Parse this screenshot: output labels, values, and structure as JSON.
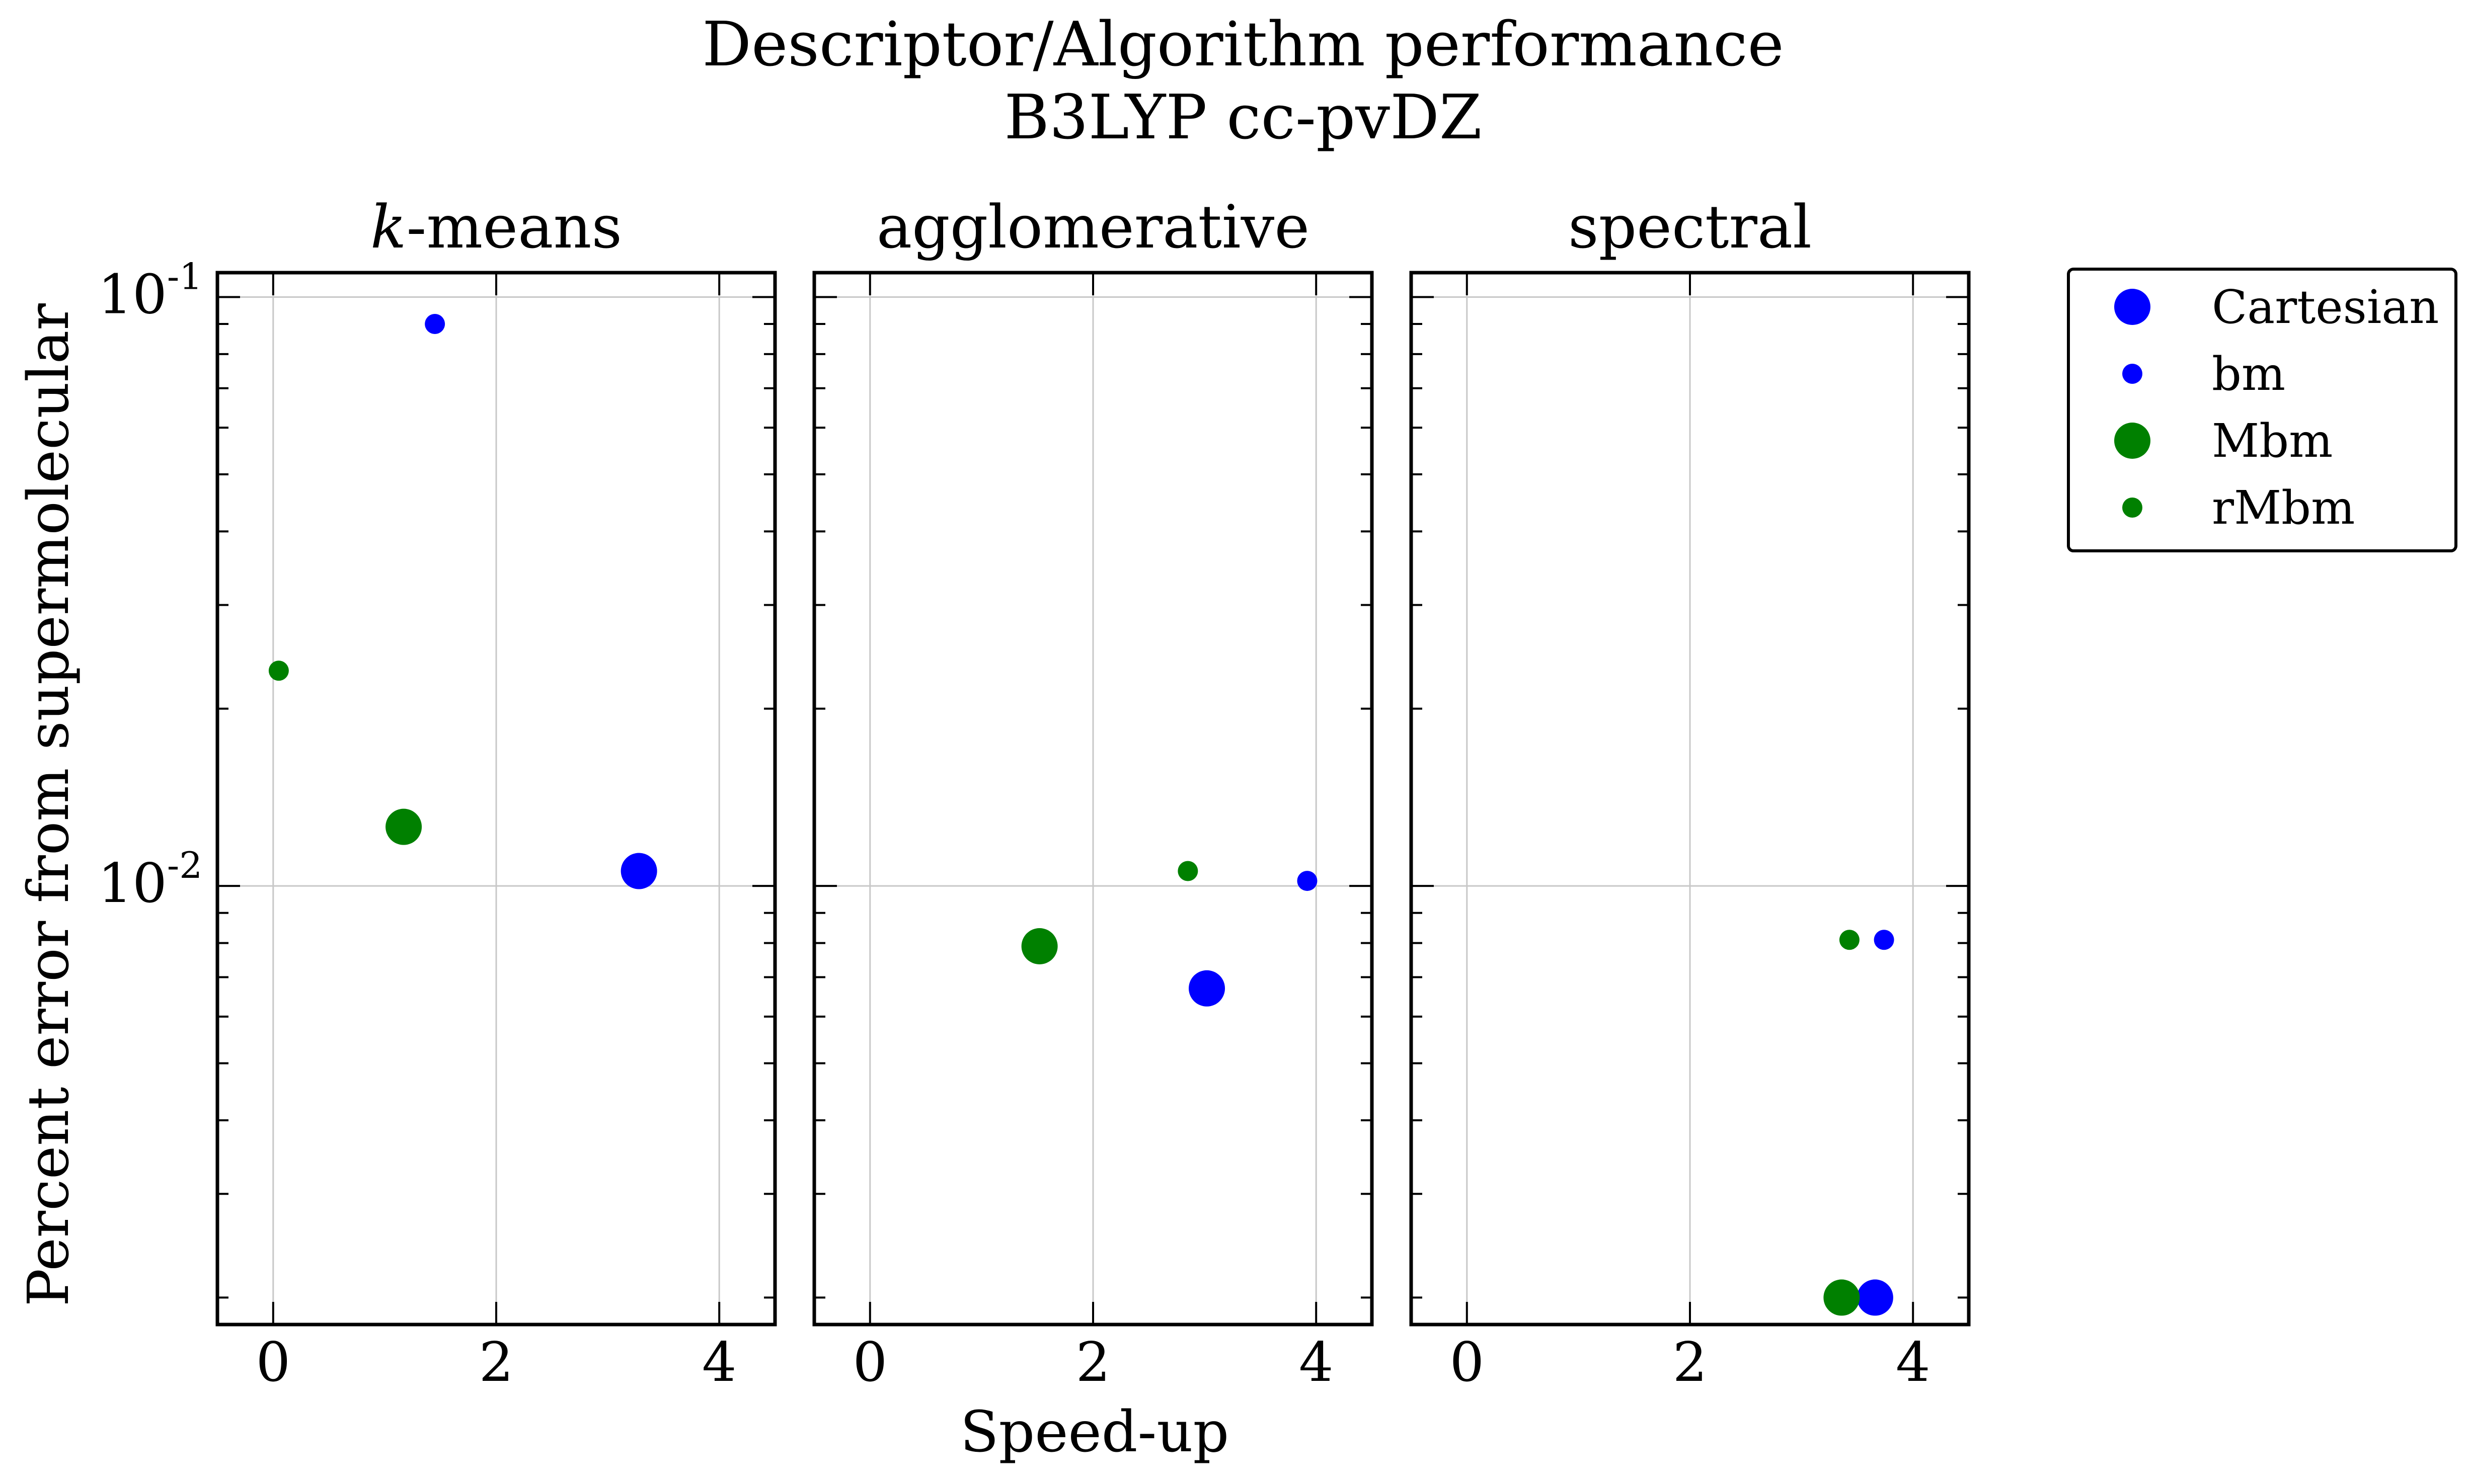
{
  "figure": {
    "title_line1": "Descriptor/Algorithm performance",
    "title_line2": "B3LYP cc-pvDZ",
    "xlabel": "Speed-up",
    "ylabel": "Percent error from supermolecular",
    "colors": {
      "blue": "#0000ff",
      "green": "#008000",
      "grid": "#c8c8c8",
      "axes": "#000000"
    }
  },
  "legend": {
    "placement": "outside-right-top",
    "entries": [
      {
        "label": "Cartesian",
        "color": "#0000ff",
        "size": "large"
      },
      {
        "label": "bm",
        "color": "#0000ff",
        "size": "small"
      },
      {
        "label": "Mbm",
        "color": "#008000",
        "size": "large"
      },
      {
        "label": "rMbm",
        "color": "#008000",
        "size": "small"
      }
    ]
  },
  "chart_data": [
    {
      "type": "scatter",
      "title_prefix": "k",
      "title_rest": "-means",
      "xlim": [
        -0.5,
        4.5
      ],
      "ylim": [
        0.0018,
        0.11
      ],
      "yscale": "log",
      "grid": true,
      "xticks": [
        "0",
        "2",
        "4"
      ],
      "yticks": [
        {
          "base": "10",
          "exp": "-1",
          "value": 0.1
        },
        {
          "base": "10",
          "exp": "-2",
          "value": 0.01
        }
      ],
      "series": [
        {
          "name": "Cartesian",
          "color": "#0000ff",
          "size": "large",
          "x": [
            3.28
          ],
          "y": [
            0.0106
          ]
        },
        {
          "name": "bm",
          "color": "#0000ff",
          "size": "small",
          "x": [
            1.45
          ],
          "y": [
            0.09
          ]
        },
        {
          "name": "Mbm",
          "color": "#008000",
          "size": "large",
          "x": [
            1.17
          ],
          "y": [
            0.0126
          ]
        },
        {
          "name": "rMbm",
          "color": "#008000",
          "size": "small",
          "x": [
            0.05
          ],
          "y": [
            0.0232
          ]
        }
      ]
    },
    {
      "type": "scatter",
      "title_prefix": "",
      "title_rest": "agglomerative",
      "xlim": [
        -0.5,
        4.5
      ],
      "ylim": [
        0.0018,
        0.11
      ],
      "yscale": "log",
      "grid": true,
      "xticks": [
        "0",
        "2",
        "4"
      ],
      "yticks": [],
      "series": [
        {
          "name": "Cartesian",
          "color": "#0000ff",
          "size": "large",
          "x": [
            3.02
          ],
          "y": [
            0.0067
          ]
        },
        {
          "name": "bm",
          "color": "#0000ff",
          "size": "small",
          "x": [
            3.92
          ],
          "y": [
            0.0102
          ]
        },
        {
          "name": "Mbm",
          "color": "#008000",
          "size": "large",
          "x": [
            1.52
          ],
          "y": [
            0.0079
          ]
        },
        {
          "name": "rMbm",
          "color": "#008000",
          "size": "small",
          "x": [
            2.85
          ],
          "y": [
            0.0106
          ]
        }
      ]
    },
    {
      "type": "scatter",
      "title_prefix": "",
      "title_rest": "spectral",
      "xlim": [
        -0.5,
        4.5
      ],
      "ylim": [
        0.0018,
        0.11
      ],
      "yscale": "log",
      "grid": true,
      "xticks": [
        "0",
        "2",
        "4"
      ],
      "yticks": [],
      "series": [
        {
          "name": "Cartesian",
          "color": "#0000ff",
          "size": "large",
          "x": [
            3.66
          ],
          "y": [
            0.002
          ]
        },
        {
          "name": "bm",
          "color": "#0000ff",
          "size": "small",
          "x": [
            3.74
          ],
          "y": [
            0.0081
          ]
        },
        {
          "name": "Mbm",
          "color": "#008000",
          "size": "large",
          "x": [
            3.36
          ],
          "y": [
            0.002
          ]
        },
        {
          "name": "rMbm",
          "color": "#008000",
          "size": "small",
          "x": [
            3.43
          ],
          "y": [
            0.0081
          ]
        }
      ]
    }
  ]
}
